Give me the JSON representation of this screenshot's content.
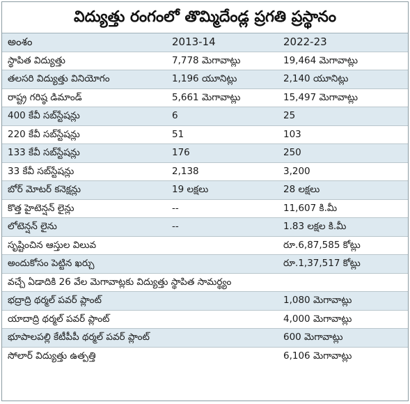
{
  "title": "విద్యుత్తు రంగంలో తొమ్మిదేండ్ల ప్రగతి ప్రస్థానం",
  "columns": [
    "అంశం",
    "2013-14",
    "2022-23"
  ],
  "rows": [
    [
      "స్థాపిత విద్యుత్తు",
      "7,778 మెగావాట్లు",
      "19,464 మెగావాట్లు"
    ],
    [
      "తలసరి విద్యుత్తు వినియోగం",
      "1,196 యూనిట్లు",
      "2,140 యూనిట్లు"
    ],
    [
      "రాష్ట్ర గరిష్ఠ డిమాండ్",
      "5,661 మెగావాట్లు",
      "15,497 మెగావాట్లు"
    ],
    [
      "400 కేవీ సబ్‌స్టేషన్లు",
      "6",
      "25"
    ],
    [
      "220 కేవీ సబ్‌స్టేషన్లు",
      "51",
      "103"
    ],
    [
      "133 కేవీ సబ్‌స్టేషన్లు",
      "176",
      "250"
    ],
    [
      "33 కేవీ సబ్‌స్టేషన్లు",
      "2,138",
      "3,200"
    ],
    [
      "బోర్ మోటర్ కనెక్షన్లు",
      "19 లక్షలు",
      "28 లక్షలు"
    ],
    [
      "కొత్త హైటెన్షన్ లైన్లు",
      "--",
      "11,607 కి.మీ"
    ],
    [
      "లోటెన్షన్ లైను",
      "--",
      "1.83 లక్షల కి.మీ"
    ],
    [
      "సృష్టించిన ఆస్తుల విలువ",
      "",
      "రూ.6,87,585 కోట్లు"
    ],
    [
      "అందుకోసం పెట్టిన ఖర్చు",
      "",
      "రూ.1,37,517 కోట్లు"
    ]
  ],
  "subheading": "వచ్చే ఏడాదికి 26 వేల మెగావాట్లకు విద్యుత్తు స్థాపిత సామర్థ్యం",
  "plants": [
    [
      "భద్రాద్రి థర్మల్ పవర్ ప్లాంట్",
      "1,080 మెగావాట్లు"
    ],
    [
      "యాదాద్రి థర్మల్ పవర్ ప్లాంట్",
      "4,000 మెగావాట్లు"
    ],
    [
      "భూపాలపల్లి కేటీపీపీ థర్మల్ పవర్ ప్లాంట్",
      "600 మెగావాట్లు"
    ],
    [
      "సోలార్ విద్యుత్తు ఉత్పత్తి",
      "6,106 మెగావాట్లు"
    ]
  ],
  "colors": {
    "stripe": "#dde9f0",
    "border": "#8a9aa2"
  }
}
